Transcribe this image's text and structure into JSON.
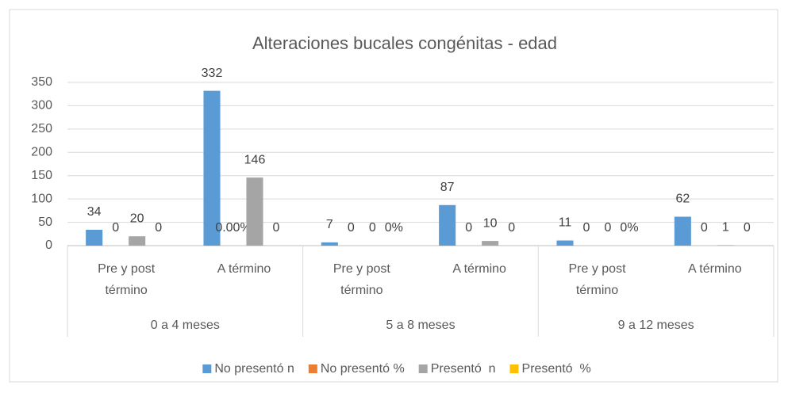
{
  "chart_data": {
    "type": "bar",
    "title": "Alteraciones bucales congénitas - edad",
    "categories": [
      "Pre y post término",
      "A término",
      "Pre y post término",
      "A término",
      "Pre y post término",
      "A término"
    ],
    "groups": [
      "0 a 4 meses",
      "5 a 8 meses",
      "9 a 12 meses"
    ],
    "series": [
      {
        "name": "No presentó n",
        "color": "#5b9bd5",
        "values": [
          34,
          332,
          7,
          87,
          11,
          62
        ]
      },
      {
        "name": "No presentó %",
        "color": "#ed7d31",
        "values": [
          0,
          0,
          0,
          0,
          0,
          0
        ],
        "value_labels": [
          "0",
          "0.00%",
          "0",
          "0",
          "0",
          "0"
        ]
      },
      {
        "name": "Presentó  n",
        "color": "#a5a5a5",
        "values": [
          20,
          146,
          0,
          10,
          0,
          1
        ]
      },
      {
        "name": "Presentó  %",
        "color": "#ffc000",
        "values": [
          0,
          0,
          0,
          0,
          0,
          0
        ],
        "value_labels": [
          "0",
          "0",
          "0%",
          "0",
          "0%",
          "0"
        ]
      }
    ],
    "ylim": [
      0,
      350
    ],
    "yticks": [
      0,
      50,
      100,
      150,
      200,
      250,
      300,
      350
    ],
    "grid": true,
    "legend": "bottom"
  }
}
